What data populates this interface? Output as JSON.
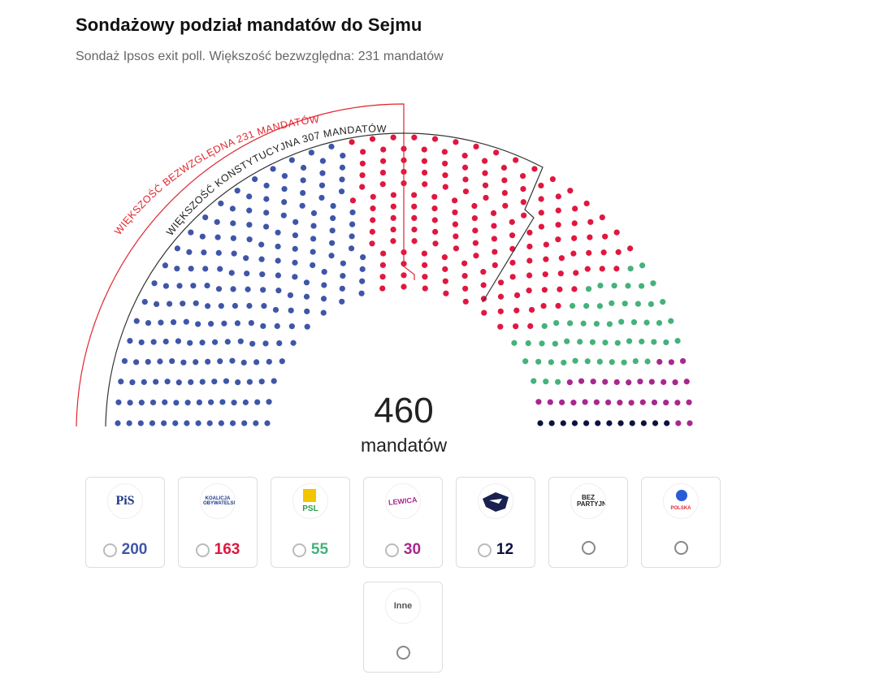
{
  "header": {
    "title": "Sondażowy podział mandatów do Sejmu",
    "subtitle": "Sondaż Ipsos exit poll. Większość bezwzględna: 231 mandatów"
  },
  "chart_data": {
    "type": "parliament-hemicycle",
    "title": "Sondażowy podział mandatów do Sejmu",
    "total_seats": 460,
    "total_value": "460",
    "total_label": "mandatów",
    "thresholds": [
      {
        "label": "WIĘKSZOŚĆ BEZWZGLĘDNA 231 MANDATÓW",
        "seats": 231,
        "color": "#e0262f"
      },
      {
        "label": "WIĘKSZOŚĆ KONSTYTUCYJNA 307 MANDATÓW",
        "seats": 307,
        "color": "#222222"
      }
    ],
    "series": [
      {
        "name": "PiS",
        "value": 200,
        "color": "#3f56a8"
      },
      {
        "name": "Koalicja Obywatelska",
        "value": 163,
        "color": "#e0173f"
      },
      {
        "name": "PSL",
        "value": 55,
        "color": "#45b27a"
      },
      {
        "name": "Lewica",
        "value": 30,
        "color": "#a8288e"
      },
      {
        "name": "Konfederacja",
        "value": 12,
        "color": "#0d1140"
      }
    ]
  },
  "parties": [
    {
      "logo_text": "PiS",
      "logo_icon": "pis-logo",
      "seats": "200",
      "color": "#3f56a8"
    },
    {
      "logo_text": "KOALICJA OBYWATELSKA",
      "logo_icon": "ko-logo",
      "seats": "163",
      "color": "#e0173f"
    },
    {
      "logo_text": "PSL",
      "logo_icon": "psl-logo",
      "seats": "55",
      "color": "#45b27a"
    },
    {
      "logo_text": "LEWICA",
      "logo_icon": "lewica-logo",
      "seats": "30",
      "color": "#a8288e"
    },
    {
      "logo_text": "",
      "logo_icon": "konfederacja-logo",
      "seats": "12",
      "color": "#0d1140"
    },
    {
      "logo_text": "BEZ PARTYJNI",
      "logo_icon": "bezpartyjni-logo",
      "seats": "",
      "color": "#e0262f"
    },
    {
      "logo_text": "POLSKA",
      "logo_icon": "polska-logo",
      "seats": "",
      "color": "#e0262f"
    },
    {
      "logo_text": "Inne",
      "logo_icon": "inne-logo",
      "seats": "",
      "color": "#555555"
    }
  ]
}
